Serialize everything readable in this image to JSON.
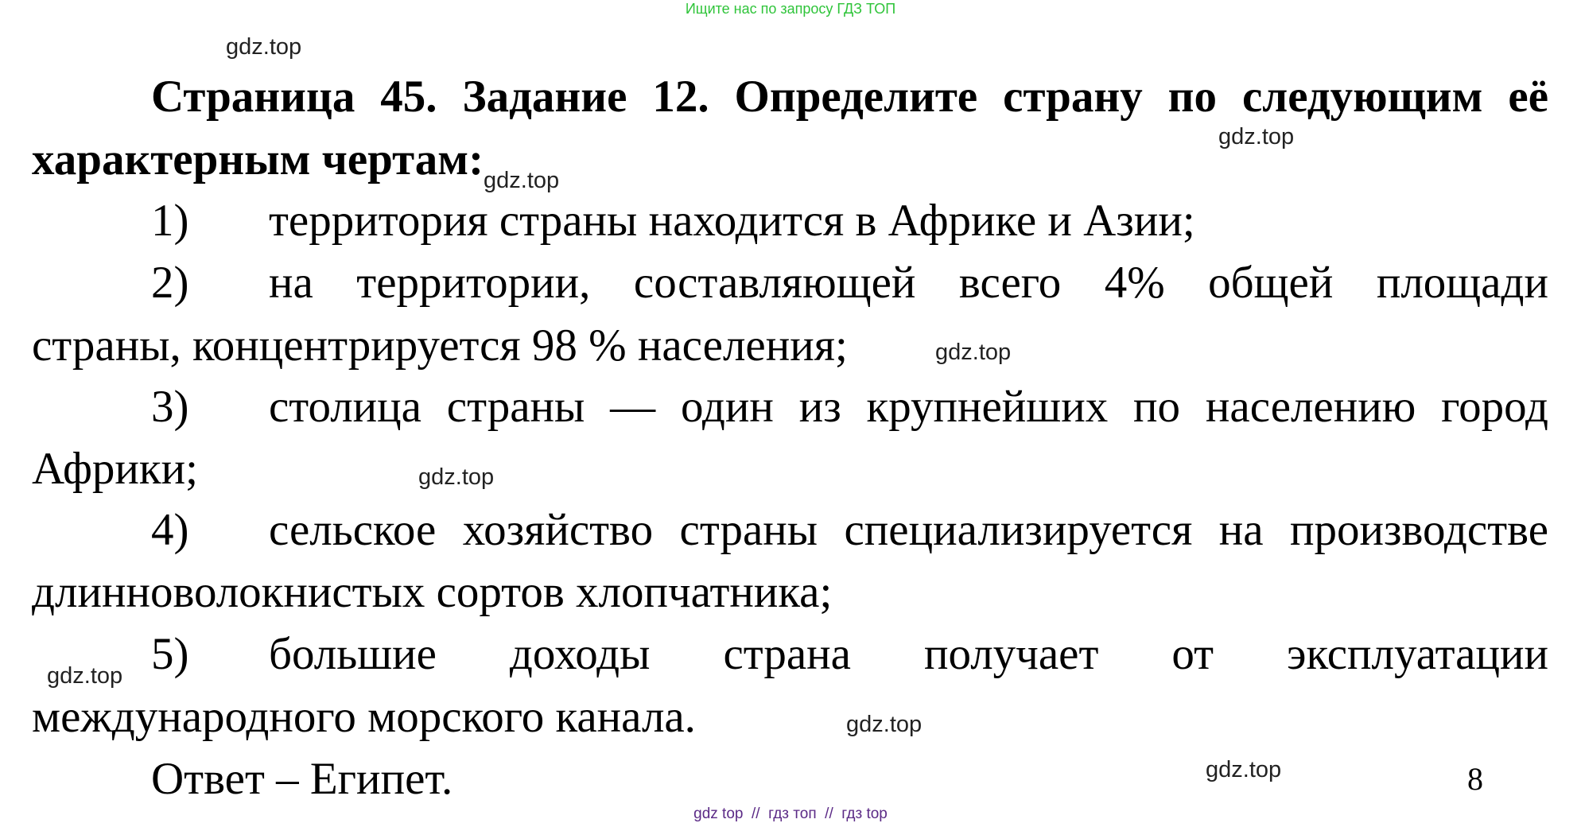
{
  "top_banner": "Ищите нас по запросу ГДЗ ТОП",
  "title": {
    "line1": "Страница 45. Задание 12. Определите страну по следующим её",
    "line2": "характерным чертам:"
  },
  "items": [
    {
      "number": "1)",
      "lines": [
        "территория страны находится в Африке и Азии;"
      ]
    },
    {
      "number": "2)",
      "lines": [
        "на территории, составляющей всего 4% общей площади",
        "страны, концентрируется 98 % населения;"
      ]
    },
    {
      "number": "3)",
      "lines": [
        "столица страны — один из крупнейших по населению город",
        "Африки;"
      ]
    },
    {
      "number": "4)",
      "lines": [
        "сельское хозяйство страны специализируется на производстве",
        "длинноволокнистых сортов хлопчатника;"
      ]
    },
    {
      "number": "5)",
      "lines": [
        "большие доходы страна получает от эксплуатации",
        "международного морского канала."
      ]
    }
  ],
  "answer": "Ответ – Египет.",
  "page_number": "8",
  "watermark": "gdz.top",
  "footer": "gdz top  //  гдз топ  //  гдз top"
}
